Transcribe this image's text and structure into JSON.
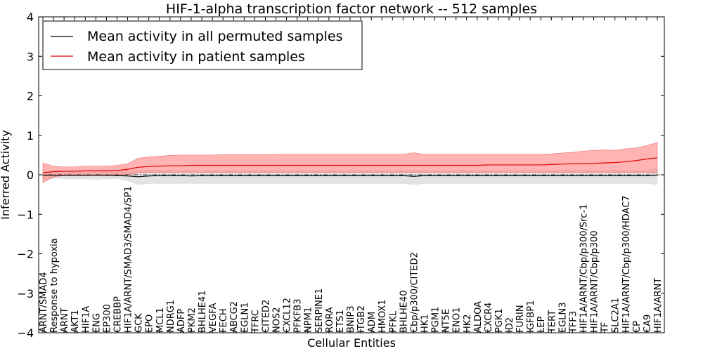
{
  "chart_data": {
    "type": "line",
    "title": "HIF-1-alpha transcription factor network -- 512 samples",
    "xlabel": "Cellular Entities",
    "ylabel": "Inferred Activity",
    "ylim": [
      -4,
      4
    ],
    "yticks": [
      -4,
      -3,
      -2,
      -1,
      0,
      1,
      2,
      3,
      4
    ],
    "ytick_labels": [
      "−4",
      "−3",
      "−2",
      "−1",
      "0",
      "1",
      "2",
      "3",
      "4"
    ],
    "grid": false,
    "legend_position": "top-left",
    "colors": {
      "permuted": "#000000",
      "permuted_band": "#c8c8c8",
      "patient": "#e00000",
      "patient_band": "#ff8080",
      "zero_line": "#000000"
    },
    "categories": [
      "ARNT/SMAD4",
      "Response to hypoxia",
      "ARNT",
      "AKT1",
      "HIF1A",
      "ENG",
      "EP300",
      "CREBBP",
      "HIF1A/ARNT/SMAD3/SMAD4/SP1",
      "GCK",
      "EPO",
      "MCL1",
      "NDRG1",
      "ADFP",
      "PKM2",
      "BHLHE41",
      "VEGFA",
      "FECH",
      "ABCG2",
      "EGLN1",
      "TFRC",
      "CITED2",
      "NOS2",
      "CXCL12",
      "PFKFB3",
      "NPM1",
      "SERPINE1",
      "RORA",
      "ETS1",
      "BNIP3",
      "ITGB2",
      "ADM",
      "HMOX1",
      "PFKL",
      "BHLHE40",
      "Cbp/p300/CITED2",
      "HK1",
      "PGM1",
      "NT5E",
      "ENO1",
      "HK2",
      "ALDOA",
      "CXCR4",
      "PGK1",
      "ID2",
      "FURIN",
      "IGFBP1",
      "LEP",
      "TERT",
      "EGLN3",
      "TFF3",
      "HIF1A/ARNT/Cbp/p300/Src-1",
      "HIF1A/ARNT/Cbp/p300",
      "TF",
      "SLC2A1",
      "HIF1A/ARNT/Cbp/p300/HDAC7",
      "CP",
      "CA9",
      "HIF1A/ARNT"
    ],
    "series": [
      {
        "name": "Mean activity in all permuted samples",
        "values": [
          -0.01,
          -0.01,
          -0.01,
          -0.01,
          -0.01,
          -0.01,
          -0.01,
          -0.02,
          -0.03,
          -0.05,
          -0.03,
          -0.02,
          -0.02,
          -0.02,
          -0.03,
          -0.02,
          -0.02,
          -0.02,
          -0.02,
          -0.02,
          -0.02,
          -0.02,
          -0.02,
          -0.02,
          -0.02,
          -0.02,
          -0.02,
          -0.02,
          -0.02,
          -0.02,
          -0.02,
          -0.02,
          -0.02,
          -0.02,
          -0.02,
          -0.04,
          -0.02,
          -0.02,
          -0.02,
          -0.02,
          -0.02,
          -0.02,
          -0.02,
          -0.02,
          -0.02,
          -0.02,
          -0.02,
          -0.02,
          -0.02,
          -0.02,
          -0.02,
          -0.02,
          -0.02,
          -0.02,
          -0.02,
          -0.02,
          -0.02,
          -0.02,
          -0.01
        ],
        "lower": [
          -0.12,
          -0.1,
          -0.1,
          -0.1,
          -0.1,
          -0.12,
          -0.1,
          -0.1,
          -0.15,
          -0.25,
          -0.22,
          -0.22,
          -0.22,
          -0.22,
          -0.22,
          -0.22,
          -0.22,
          -0.22,
          -0.22,
          -0.22,
          -0.22,
          -0.22,
          -0.22,
          -0.22,
          -0.22,
          -0.22,
          -0.22,
          -0.22,
          -0.22,
          -0.22,
          -0.22,
          -0.22,
          -0.22,
          -0.22,
          -0.22,
          -0.25,
          -0.22,
          -0.22,
          -0.22,
          -0.22,
          -0.22,
          -0.22,
          -0.22,
          -0.22,
          -0.22,
          -0.22,
          -0.22,
          -0.22,
          -0.22,
          -0.22,
          -0.22,
          -0.22,
          -0.22,
          -0.22,
          -0.22,
          -0.22,
          -0.22,
          -0.22,
          -0.25
        ],
        "upper": [
          0.08,
          0.08,
          0.08,
          0.08,
          0.08,
          0.08,
          0.08,
          0.08,
          0.1,
          0.12,
          0.12,
          0.12,
          0.12,
          0.12,
          0.12,
          0.12,
          0.12,
          0.12,
          0.12,
          0.12,
          0.12,
          0.12,
          0.12,
          0.12,
          0.12,
          0.12,
          0.12,
          0.12,
          0.12,
          0.12,
          0.12,
          0.12,
          0.12,
          0.12,
          0.12,
          0.12,
          0.12,
          0.12,
          0.12,
          0.12,
          0.12,
          0.12,
          0.12,
          0.12,
          0.12,
          0.12,
          0.12,
          0.12,
          0.12,
          0.12,
          0.12,
          0.12,
          0.12,
          0.12,
          0.12,
          0.12,
          0.12,
          0.12,
          0.15
        ]
      },
      {
        "name": "Mean activity in patient samples",
        "values": [
          0.05,
          0.08,
          0.09,
          0.09,
          0.1,
          0.1,
          0.1,
          0.11,
          0.14,
          0.19,
          0.21,
          0.22,
          0.23,
          0.23,
          0.24,
          0.24,
          0.24,
          0.24,
          0.24,
          0.24,
          0.24,
          0.24,
          0.24,
          0.24,
          0.24,
          0.24,
          0.24,
          0.24,
          0.24,
          0.24,
          0.24,
          0.24,
          0.24,
          0.24,
          0.24,
          0.24,
          0.24,
          0.24,
          0.24,
          0.24,
          0.24,
          0.24,
          0.25,
          0.25,
          0.25,
          0.25,
          0.25,
          0.25,
          0.26,
          0.27,
          0.28,
          0.28,
          0.29,
          0.3,
          0.31,
          0.33,
          0.36,
          0.4,
          0.43
        ],
        "lower": [
          -0.2,
          -0.05,
          -0.02,
          -0.02,
          -0.02,
          -0.02,
          -0.02,
          -0.02,
          0.0,
          0.05,
          0.06,
          0.06,
          0.06,
          0.06,
          0.06,
          0.06,
          0.06,
          0.06,
          0.06,
          0.06,
          0.06,
          0.06,
          0.06,
          0.06,
          0.06,
          0.06,
          0.06,
          0.06,
          0.06,
          0.06,
          0.06,
          0.06,
          0.06,
          0.06,
          0.06,
          0.06,
          0.06,
          0.06,
          0.06,
          0.06,
          0.06,
          0.06,
          0.06,
          0.06,
          0.06,
          0.06,
          0.06,
          0.06,
          0.06,
          0.06,
          0.06,
          0.06,
          0.06,
          0.06,
          0.06,
          0.06,
          0.06,
          0.06,
          0.05
        ],
        "upper": [
          0.3,
          0.22,
          0.2,
          0.2,
          0.22,
          0.22,
          0.22,
          0.24,
          0.28,
          0.42,
          0.45,
          0.47,
          0.49,
          0.5,
          0.5,
          0.5,
          0.5,
          0.51,
          0.51,
          0.51,
          0.51,
          0.51,
          0.52,
          0.52,
          0.52,
          0.52,
          0.52,
          0.52,
          0.52,
          0.52,
          0.52,
          0.52,
          0.52,
          0.52,
          0.52,
          0.56,
          0.52,
          0.52,
          0.52,
          0.52,
          0.52,
          0.52,
          0.52,
          0.52,
          0.52,
          0.52,
          0.52,
          0.52,
          0.53,
          0.55,
          0.57,
          0.6,
          0.62,
          0.63,
          0.62,
          0.66,
          0.68,
          0.74,
          0.82
        ]
      }
    ]
  }
}
